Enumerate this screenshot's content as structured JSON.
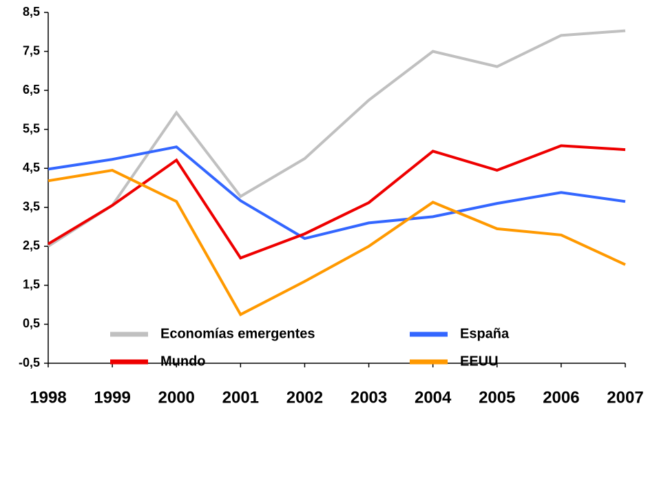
{
  "chart_data": {
    "type": "line",
    "categories": [
      "1998",
      "1999",
      "2000",
      "2001",
      "2002",
      "2003",
      "2004",
      "2005",
      "2006",
      "2007"
    ],
    "series": [
      {
        "name": "Economías emergentes",
        "color": "#c0c0c0",
        "values": [
          2.5,
          3.55,
          5.93,
          3.78,
          4.75,
          6.25,
          7.5,
          7.11,
          7.91,
          8.03
        ]
      },
      {
        "name": "España",
        "color": "#3366ff",
        "values": [
          4.48,
          4.73,
          5.05,
          3.67,
          2.7,
          3.1,
          3.26,
          3.6,
          3.88,
          3.65
        ]
      },
      {
        "name": "Mundo",
        "color": "#ee0000",
        "values": [
          2.56,
          3.55,
          4.71,
          2.2,
          2.82,
          3.62,
          4.94,
          4.45,
          5.08,
          4.98
        ]
      },
      {
        "name": "EEUU",
        "color": "#ff9900",
        "values": [
          4.18,
          4.45,
          3.65,
          0.75,
          1.6,
          2.5,
          3.63,
          2.95,
          2.79,
          2.03
        ]
      }
    ],
    "ylim": [
      -0.5,
      8.5
    ],
    "yticks": [
      {
        "value": -0.5,
        "label": "-0,5"
      },
      {
        "value": 0.5,
        "label": "0,5"
      },
      {
        "value": 1.5,
        "label": "1,5"
      },
      {
        "value": 2.5,
        "label": "2,5"
      },
      {
        "value": 3.5,
        "label": "3,5"
      },
      {
        "value": 4.5,
        "label": "4,5"
      },
      {
        "value": 5.5,
        "label": "5,5"
      },
      {
        "value": 6.5,
        "label": "6,5"
      },
      {
        "value": 7.5,
        "label": "7,5"
      },
      {
        "value": 8.5,
        "label": "8,5"
      }
    ],
    "grid": false
  }
}
